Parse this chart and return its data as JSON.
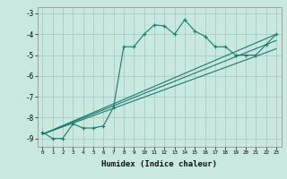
{
  "xlabel": "Humidex (Indice chaleur)",
  "xlim": [
    -0.5,
    23.5
  ],
  "ylim": [
    -9.4,
    -2.7
  ],
  "yticks": [
    -9,
    -8,
    -7,
    -6,
    -5,
    -4,
    -3
  ],
  "xticks": [
    0,
    1,
    2,
    3,
    4,
    5,
    6,
    7,
    8,
    9,
    10,
    11,
    12,
    13,
    14,
    15,
    16,
    17,
    18,
    19,
    20,
    21,
    22,
    23
  ],
  "bg_color": "#c8e8e0",
  "grid_color": "#a0c8c0",
  "line_color": "#1a7a6e",
  "line1_x": [
    0,
    1,
    2,
    3,
    4,
    5,
    6,
    7,
    8,
    9,
    10,
    11,
    12,
    13,
    14,
    15,
    16,
    17,
    18,
    19,
    20,
    21,
    22,
    23
  ],
  "line1_y": [
    -8.7,
    -9.0,
    -9.0,
    -8.3,
    -8.5,
    -8.5,
    -8.4,
    -7.5,
    -4.6,
    -4.6,
    -4.0,
    -3.55,
    -3.6,
    -4.0,
    -3.3,
    -3.85,
    -4.1,
    -4.6,
    -4.6,
    -5.0,
    -5.0,
    -5.0,
    -4.5,
    -4.0
  ],
  "line2_x": [
    0,
    23
  ],
  "line2_y": [
    -8.8,
    -4.0
  ],
  "line3_x": [
    0,
    23
  ],
  "line3_y": [
    -8.8,
    -4.3
  ],
  "line4_x": [
    0,
    23
  ],
  "line4_y": [
    -8.8,
    -4.7
  ],
  "marker": "+"
}
